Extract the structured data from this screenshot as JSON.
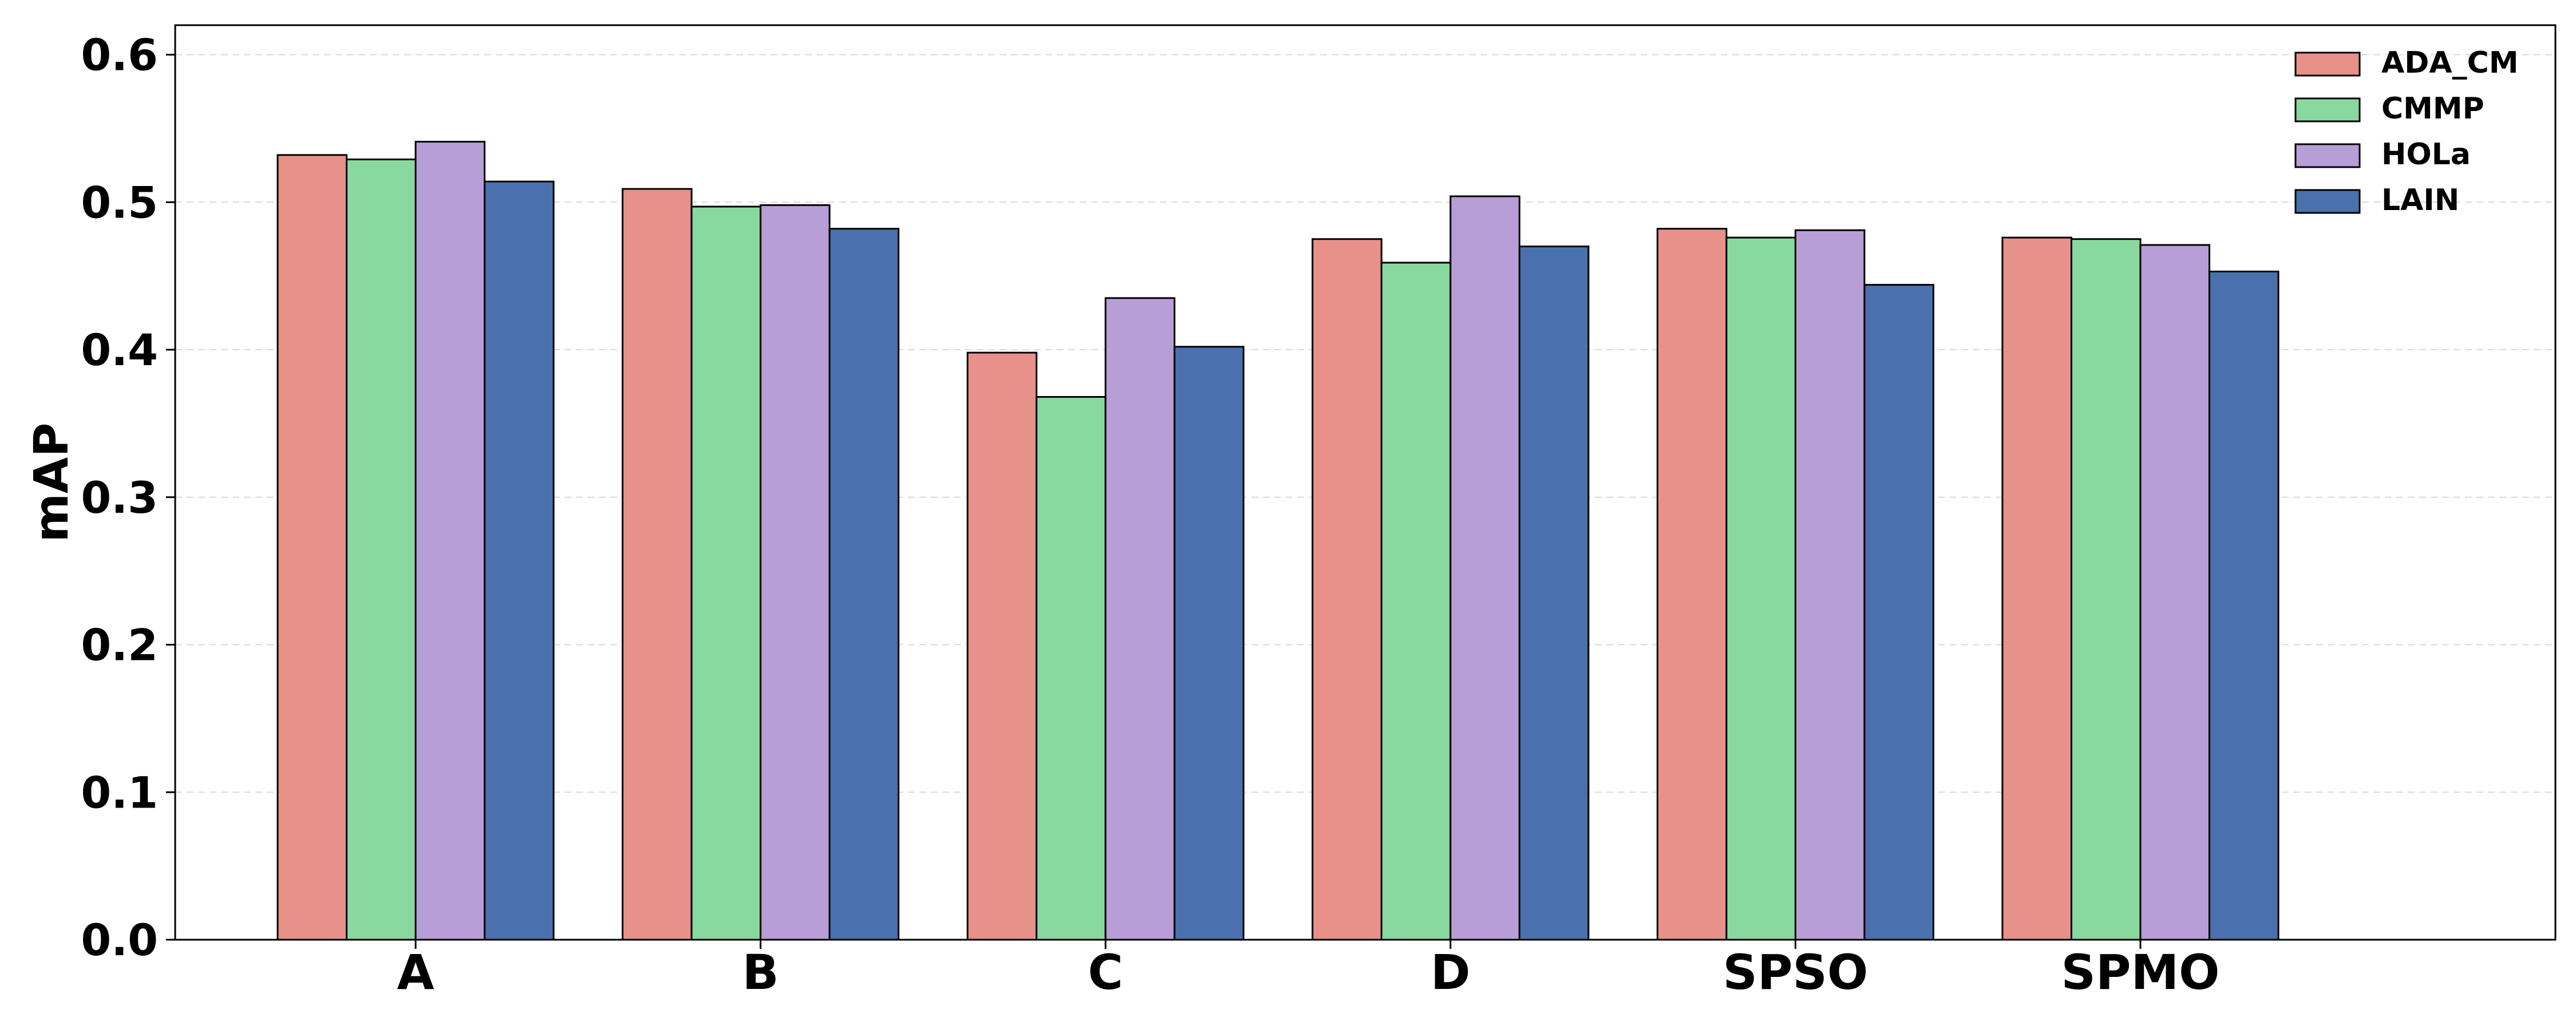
{
  "chart_data": {
    "type": "bar",
    "title": "",
    "xlabel": "",
    "ylabel": "mAP",
    "categories": [
      "A",
      "B",
      "C",
      "D",
      "SPSO",
      "SPMO"
    ],
    "ylim": [
      0,
      0.62
    ],
    "yticks": [
      "0.0",
      "0.1",
      "0.2",
      "0.3",
      "0.4",
      "0.5",
      "0.6"
    ],
    "grid": true,
    "legend_position": "top-right",
    "series": [
      {
        "name": "ADA_CM",
        "color": "#e8908a",
        "values": [
          0.532,
          0.509,
          0.398,
          0.475,
          0.482,
          0.476
        ]
      },
      {
        "name": "CMMP",
        "color": "#88d8a0",
        "values": [
          0.529,
          0.497,
          0.368,
          0.459,
          0.476,
          0.475
        ]
      },
      {
        "name": "HOLa",
        "color": "#b89ed6",
        "values": [
          0.541,
          0.498,
          0.435,
          0.504,
          0.481,
          0.471
        ]
      },
      {
        "name": "LAIN",
        "color": "#4a71ae",
        "values": [
          0.514,
          0.482,
          0.402,
          0.47,
          0.444,
          0.453
        ]
      }
    ]
  }
}
